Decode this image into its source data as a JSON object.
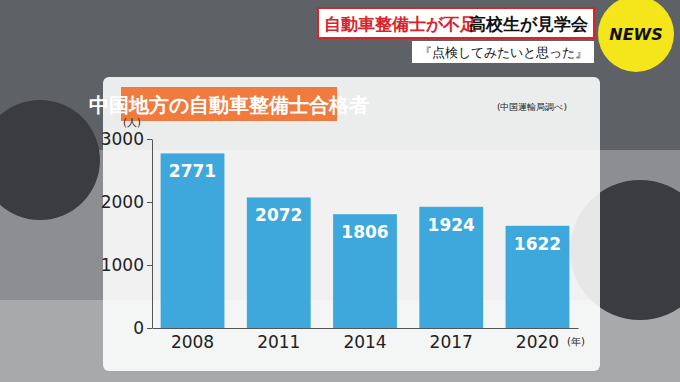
{
  "header": {
    "headline": "自動車整備士が不足",
    "headline_2": "高校生が見学会",
    "quote": "『点検してみたいと思った』",
    "logo": "NEWS"
  },
  "chart_data": {
    "type": "bar",
    "title": "中国地方の自動車整備士合格者",
    "subtitle": "(中国運輸局調べ)",
    "y_label": "(人)",
    "x_label": "(年)",
    "categories": [
      "2008",
      "2011",
      "2014",
      "2017",
      "2020"
    ],
    "values": [
      2771,
      2072,
      1806,
      1924,
      1622
    ],
    "color": "#3ea7dc",
    "ylim": [
      0,
      3000
    ],
    "yticks": [
      0,
      1000,
      2000,
      3000
    ],
    "grid": false,
    "data_labels": true
  }
}
